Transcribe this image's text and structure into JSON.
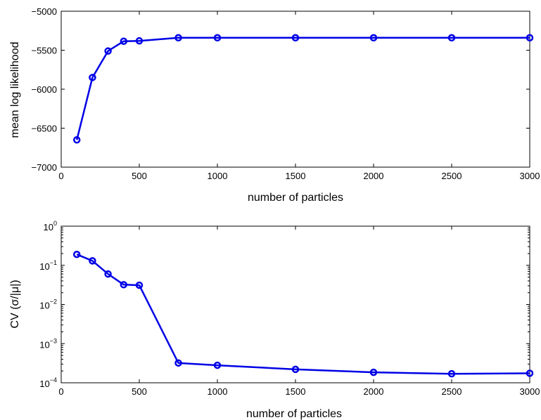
{
  "chart_data": [
    {
      "type": "line",
      "xlabel": "number of particles",
      "ylabel": "mean log likelihood",
      "xlim": [
        0,
        3000
      ],
      "ylim": [
        -7000,
        -5000
      ],
      "y_scale": "linear",
      "xticks": [
        0,
        500,
        1000,
        1500,
        2000,
        2500,
        3000
      ],
      "xtick_labels": [
        "0",
        "500",
        "1000",
        "1500",
        "2000",
        "2500",
        "3000"
      ],
      "yticks": [
        -7000,
        -6500,
        -6000,
        -5500,
        -5000
      ],
      "ytick_labels": [
        "−7000",
        "−6500",
        "−6000",
        "−5500",
        "−5000"
      ],
      "grid": false,
      "color": "#0000e6",
      "marker": "open-circle",
      "series": [
        {
          "x": [
            100,
            200,
            300,
            400,
            500,
            750,
            1000,
            1500,
            2000,
            2500,
            3000
          ],
          "values": [
            -6650,
            -5850,
            -5510,
            -5385,
            -5380,
            -5340,
            -5340,
            -5340,
            -5340,
            -5340,
            -5340
          ]
        }
      ]
    },
    {
      "type": "line",
      "xlabel": "number of particles",
      "ylabel": "CV (σ/|μ|)",
      "xlim": [
        0,
        3000
      ],
      "ylim": [
        0.0001,
        1
      ],
      "y_scale": "log",
      "xticks": [
        0,
        500,
        1000,
        1500,
        2000,
        2500,
        3000
      ],
      "xtick_labels": [
        "0",
        "500",
        "1000",
        "1500",
        "2000",
        "2500",
        "3000"
      ],
      "yticks": [
        0.0001,
        0.001,
        0.01,
        0.1,
        1
      ],
      "ytick_labels": [
        {
          "base": "10",
          "exp": "−4"
        },
        {
          "base": "10",
          "exp": "−3"
        },
        {
          "base": "10",
          "exp": "−2"
        },
        {
          "base": "10",
          "exp": "−1"
        },
        {
          "base": "10",
          "exp": "0"
        }
      ],
      "grid": false,
      "color": "#0000e6",
      "marker": "open-circle",
      "series": [
        {
          "x": [
            100,
            200,
            300,
            400,
            500,
            750,
            1000,
            1500,
            2000,
            2500,
            3000
          ],
          "values": [
            0.19,
            0.13,
            0.06,
            0.032,
            0.031,
            0.00032,
            0.00028,
            0.00022,
            0.000185,
            0.00017,
            0.000175
          ]
        }
      ]
    }
  ]
}
